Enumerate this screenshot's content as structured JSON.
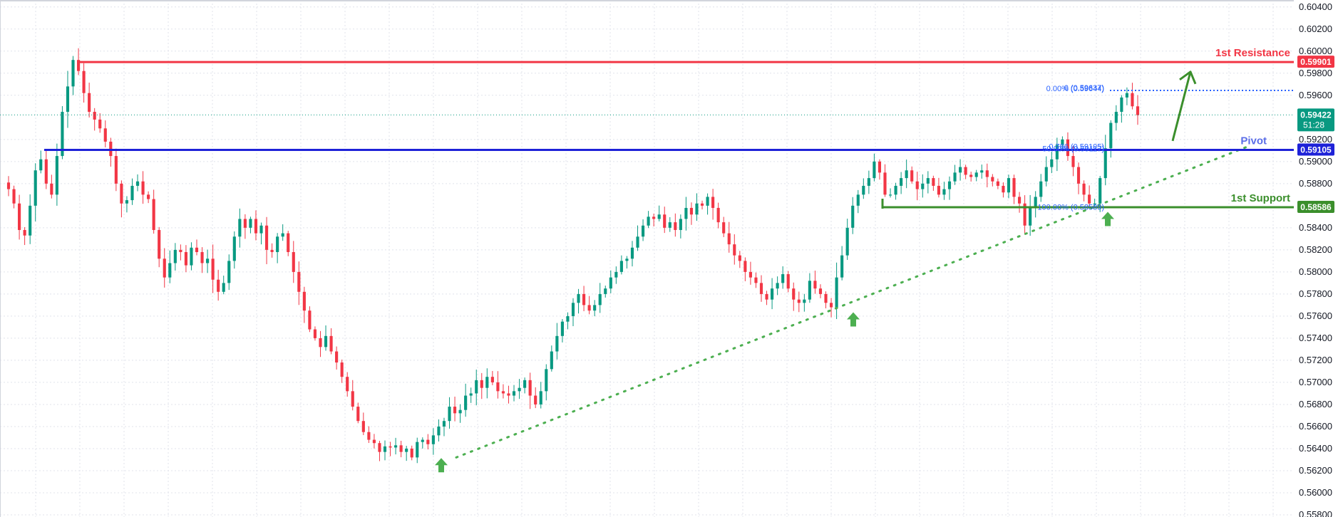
{
  "chart_data": {
    "type": "candlestick",
    "title": "",
    "xlabel": "",
    "ylabel": "",
    "ylim": [
      0.558,
      0.6045
    ],
    "y_ticks": [
      "0.60400",
      "0.60200",
      "0.60000",
      "0.59800",
      "0.59600",
      "0.59200",
      "0.59000",
      "0.58800",
      "0.58400",
      "0.58200",
      "0.58000",
      "0.57800",
      "0.57600",
      "0.57400",
      "0.57200",
      "0.57000",
      "0.56800",
      "0.56600",
      "0.56400",
      "0.56200",
      "0.56000",
      "0.55800"
    ],
    "grid": true,
    "colors": {
      "up": "#089981",
      "down": "#f23645",
      "resistance": "#f23645",
      "pivot": "#1e22d8",
      "support": "#3b8f2c",
      "trend": "#4caf50",
      "fib": "#2962ff",
      "price": "#089981"
    },
    "current_price": {
      "label": "0.59422",
      "countdown": "51:28",
      "value": 0.59422
    },
    "levels": [
      {
        "name": "resistance",
        "title": "1st Resistance",
        "value": 0.59901,
        "label": "0.59901"
      },
      {
        "name": "pivot",
        "title": "Pivot",
        "value": 0.59105,
        "label": "0.59105"
      },
      {
        "name": "support",
        "title": "1st Support",
        "value": 0.58586,
        "label": "0.58586"
      }
    ],
    "fib_labels": [
      {
        "text": "0 (0.59637)",
        "value": 0.59637
      },
      {
        "text": "0.00% (0.59644)",
        "value": 0.59644
      },
      {
        "text": "0.786 (0.59105)",
        "value": 0.59105
      },
      {
        "text": "50.00% (0.59117)",
        "value": 0.59117
      },
      {
        "text": "100.00% (0.58589)",
        "value": 0.58589
      }
    ],
    "trendline": {
      "from_price": 0.5632,
      "to_price": 0.5913
    },
    "swing_arrows": [
      {
        "price": 0.5625
      },
      {
        "price": 0.5757
      },
      {
        "price": 0.5848
      }
    ],
    "projection_arrow": {
      "from_price": 0.592,
      "to_price": 0.598
    },
    "close_path": [
      0.5875,
      0.5862,
      0.5838,
      0.5833,
      0.586,
      0.5892,
      0.5902,
      0.588,
      0.587,
      0.5905,
      0.5945,
      0.5968,
      0.5992,
      0.5982,
      0.5962,
      0.5945,
      0.5938,
      0.593,
      0.5918,
      0.5905,
      0.588,
      0.5862,
      0.5865,
      0.5878,
      0.5882,
      0.587,
      0.5866,
      0.5838,
      0.5812,
      0.5795,
      0.5808,
      0.582,
      0.5818,
      0.5806,
      0.5822,
      0.5818,
      0.5808,
      0.5812,
      0.5793,
      0.5782,
      0.579,
      0.581,
      0.5832,
      0.5848,
      0.584,
      0.5848,
      0.5835,
      0.5842,
      0.582,
      0.5818,
      0.5832,
      0.5835,
      0.5818,
      0.58,
      0.5782,
      0.5765,
      0.5748,
      0.574,
      0.5732,
      0.5742,
      0.5728,
      0.5718,
      0.5705,
      0.5692,
      0.5678,
      0.5665,
      0.5655,
      0.5648,
      0.5645,
      0.5637,
      0.5642,
      0.5641,
      0.5643,
      0.5637,
      0.564,
      0.5632,
      0.5646,
      0.5648,
      0.5644,
      0.5652,
      0.566,
      0.5665,
      0.5678,
      0.5672,
      0.5675,
      0.5688,
      0.569,
      0.5702,
      0.5695,
      0.5705,
      0.57,
      0.5692,
      0.569,
      0.5688,
      0.5692,
      0.5695,
      0.5702,
      0.5688,
      0.568,
      0.5692,
      0.5712,
      0.5728,
      0.5742,
      0.5755,
      0.576,
      0.5772,
      0.578,
      0.577,
      0.5765,
      0.577,
      0.578,
      0.5785,
      0.5795,
      0.58,
      0.581,
      0.5812,
      0.5822,
      0.5832,
      0.5842,
      0.585,
      0.5848,
      0.5852,
      0.584,
      0.5845,
      0.5838,
      0.5848,
      0.5858,
      0.5852,
      0.5862,
      0.586,
      0.5868,
      0.5858,
      0.5845,
      0.5835,
      0.5825,
      0.5815,
      0.581,
      0.58,
      0.5795,
      0.579,
      0.578,
      0.5775,
      0.5785,
      0.579,
      0.5798,
      0.5785,
      0.5775,
      0.5772,
      0.5775,
      0.5792,
      0.5785,
      0.578,
      0.5772,
      0.5768,
      0.5795,
      0.5815,
      0.584,
      0.586,
      0.587,
      0.5878,
      0.5885,
      0.59,
      0.589,
      0.587,
      0.587,
      0.5878,
      0.5885,
      0.5892,
      0.5882,
      0.5875,
      0.588,
      0.5885,
      0.5878,
      0.587,
      0.5875,
      0.5882,
      0.589,
      0.5895,
      0.5888,
      0.5886,
      0.589,
      0.5892,
      0.5886,
      0.5882,
      0.5878,
      0.5872,
      0.5885,
      0.5868,
      0.5862,
      0.5842,
      0.5858,
      0.5868,
      0.5882,
      0.5895,
      0.5902,
      0.5915,
      0.592,
      0.5905,
      0.5895,
      0.588,
      0.587,
      0.5862,
      0.5862,
      0.5885,
      0.5912,
      0.5935,
      0.5945,
      0.5958,
      0.5962,
      0.595,
      0.5942
    ]
  }
}
